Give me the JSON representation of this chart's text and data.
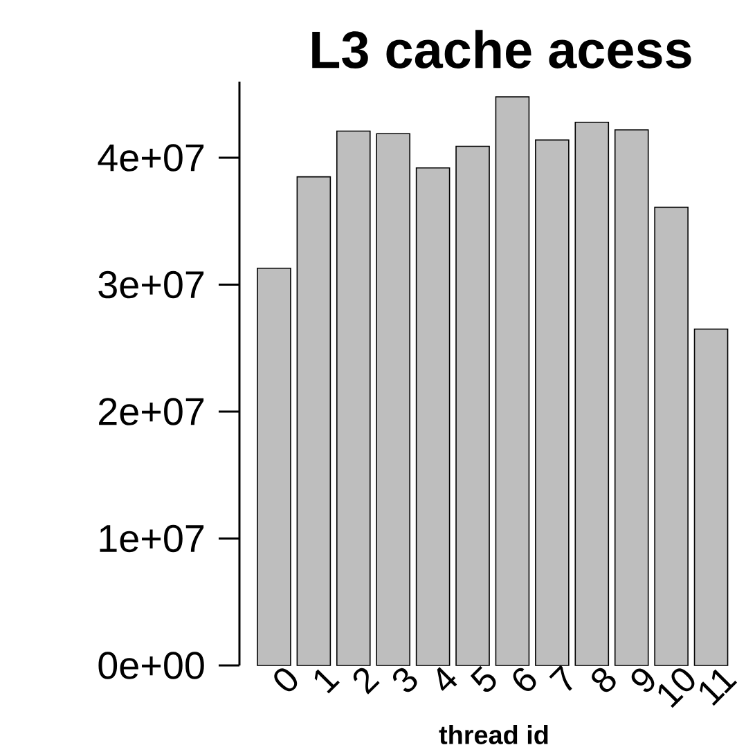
{
  "chart_data": {
    "type": "bar",
    "title": "L3 cache acess",
    "xlabel": "thread id",
    "categories": [
      "0",
      "1",
      "2",
      "3",
      "4",
      "5",
      "6",
      "7",
      "8",
      "9",
      "10",
      "11"
    ],
    "values": [
      31300000,
      38500000,
      42100000,
      41900000,
      39200000,
      40900000,
      44800000,
      41400000,
      42800000,
      42200000,
      36100000,
      26500000
    ],
    "color": "#bebebe",
    "ylim": [
      0,
      46000000
    ],
    "yticks": [
      {
        "value": 0,
        "label": "0e+00"
      },
      {
        "value": 10000000,
        "label": "1e+07"
      },
      {
        "value": 20000000,
        "label": "2e+07"
      },
      {
        "value": 30000000,
        "label": "3e+07"
      },
      {
        "value": 40000000,
        "label": "4e+07"
      }
    ],
    "grid": false
  }
}
